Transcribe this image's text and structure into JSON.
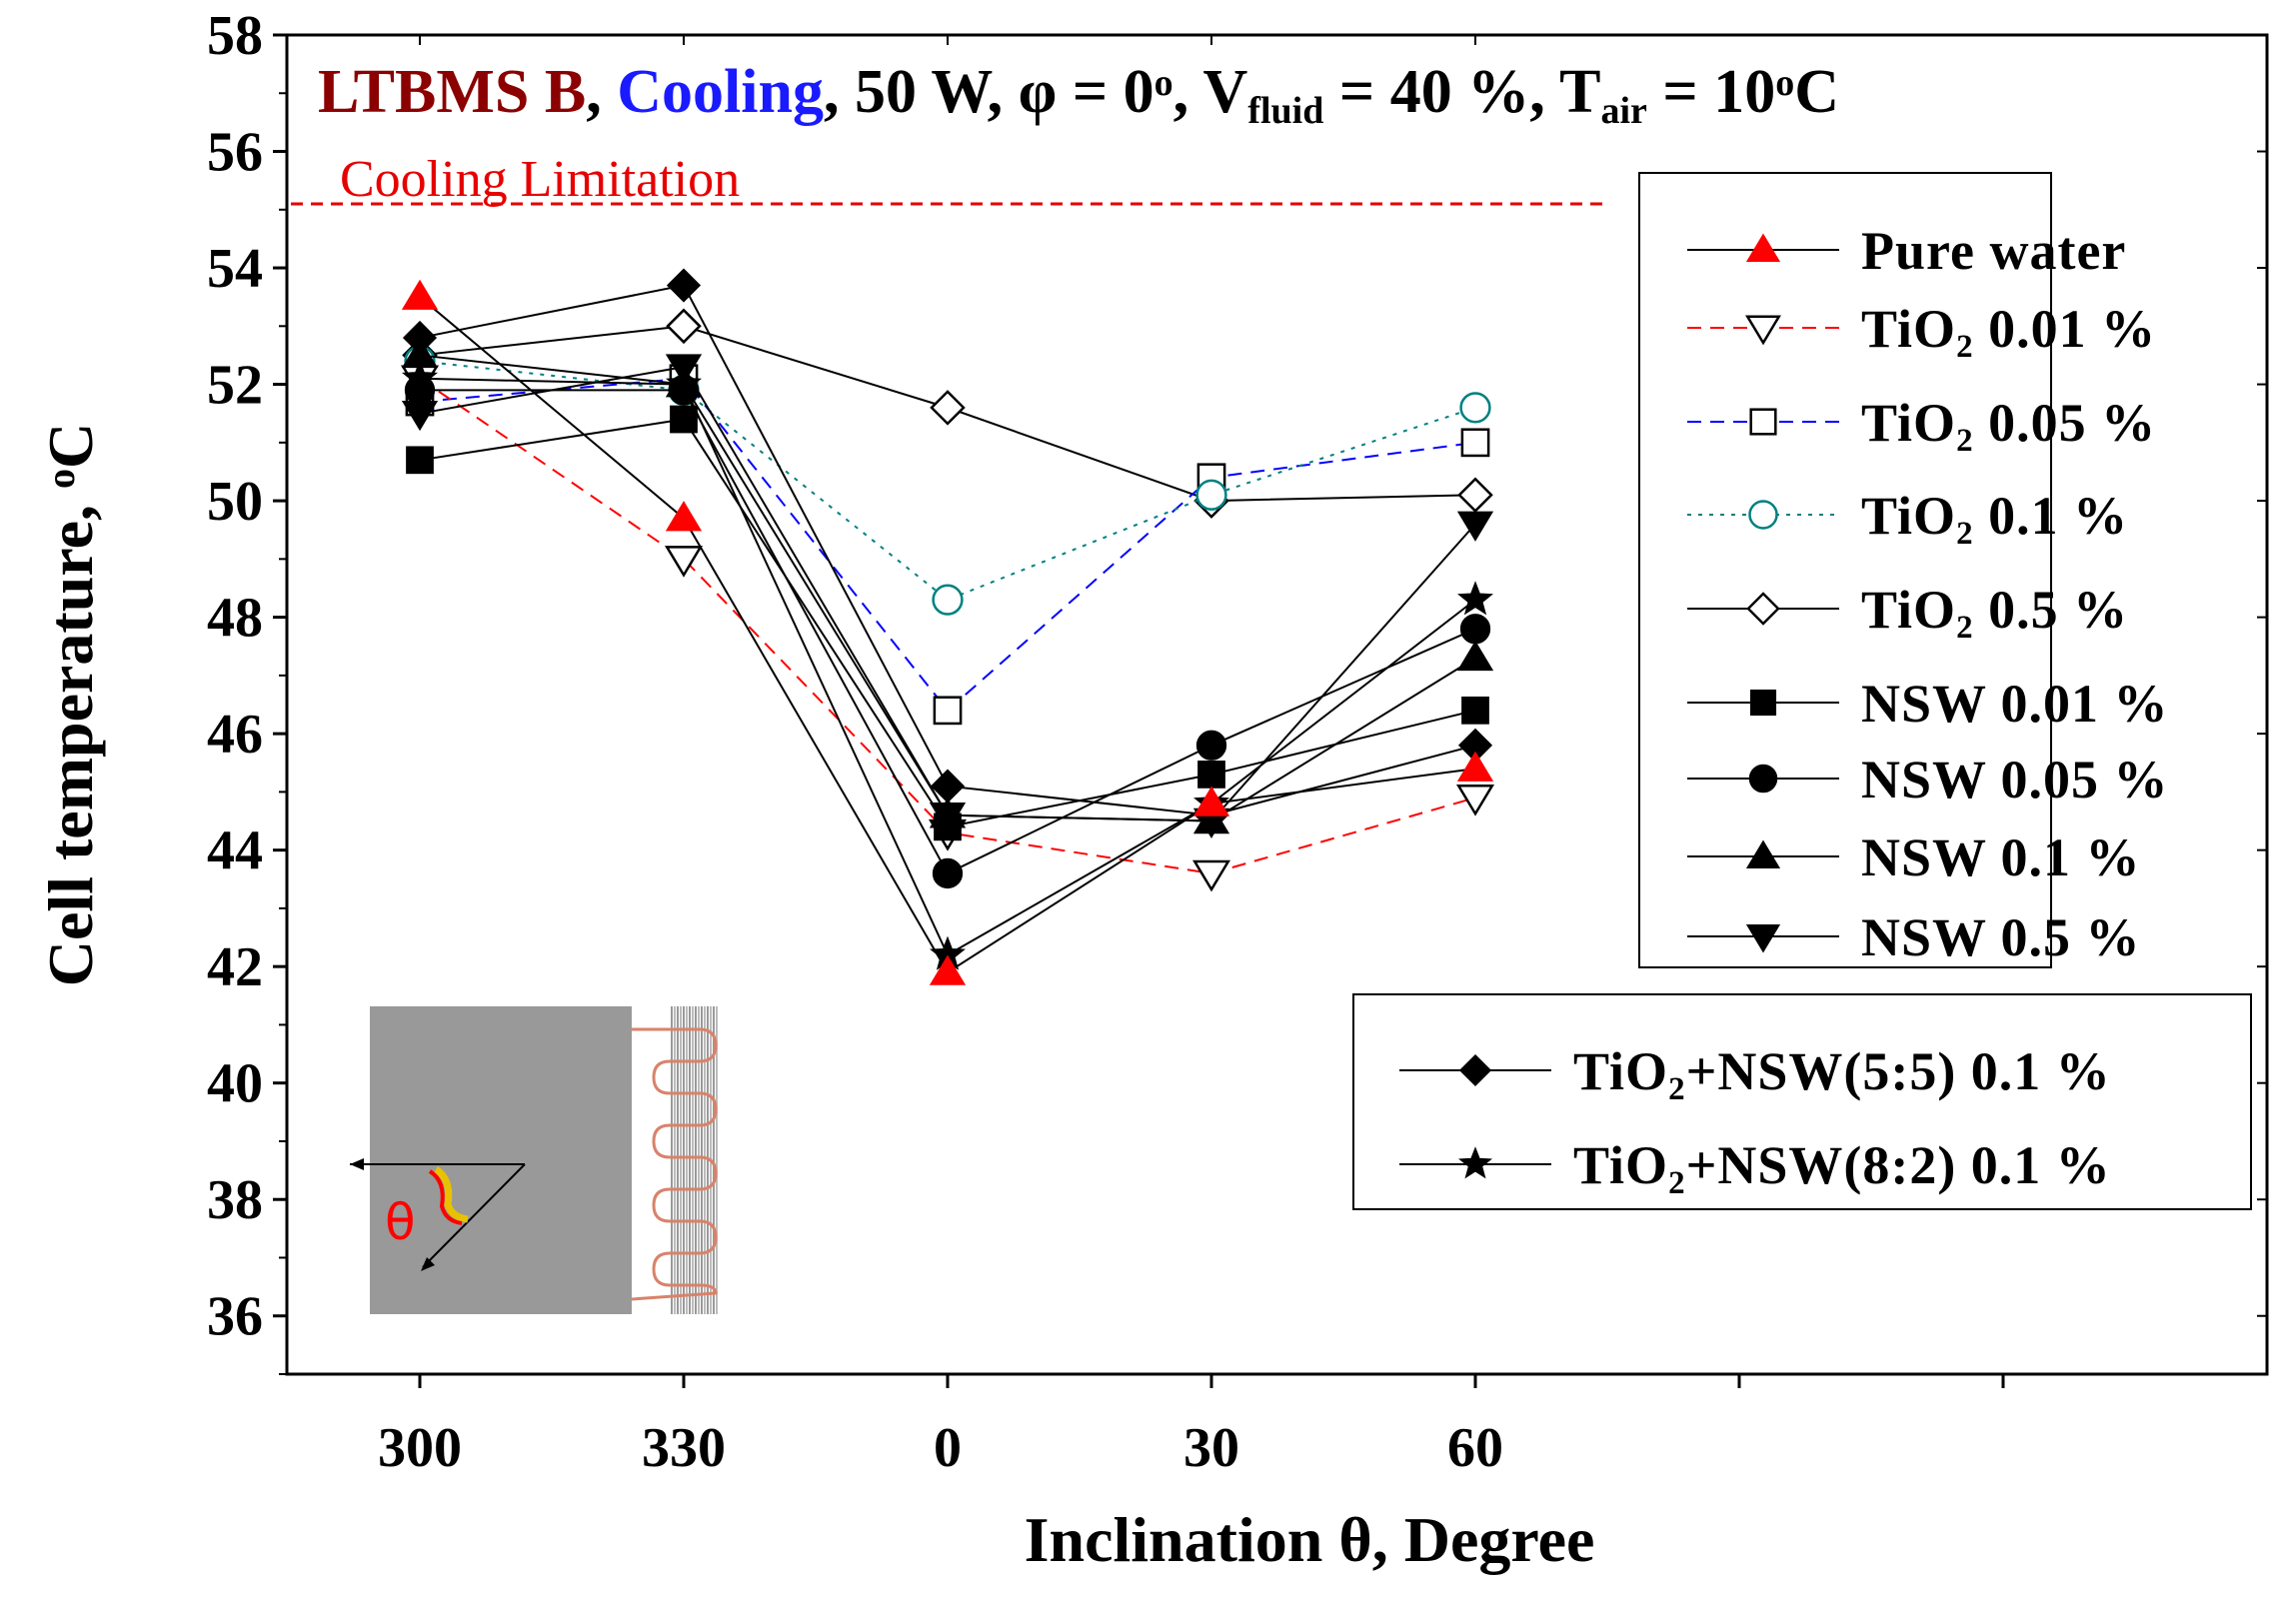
{
  "chart_data": {
    "type": "line",
    "title": {
      "parts": [
        {
          "text": "LTBMS B",
          "color": "#8b0000"
        },
        {
          "text": ", ",
          "color": "#000000"
        },
        {
          "text": "Cooling",
          "color": "#1a1aff"
        },
        {
          "text": ", 50 W, φ = 0",
          "color": "#000000"
        },
        {
          "text": "o",
          "color": "#000000",
          "sup": true
        },
        {
          "text": ", V",
          "color": "#000000"
        },
        {
          "text": "fluid",
          "color": "#000000",
          "sub": true
        },
        {
          "text": " = 40 %, T",
          "color": "#000000"
        },
        {
          "text": "air",
          "color": "#000000",
          "sub": true
        },
        {
          "text": " = 10",
          "color": "#000000"
        },
        {
          "text": "o",
          "color": "#000000",
          "sup": true
        },
        {
          "text": "C",
          "color": "#000000"
        }
      ]
    },
    "xlabel": "Inclination θ, Degree",
    "ylabel": "Cell temperature, ",
    "ylabel_sup": "o",
    "ylabel_end": "C",
    "categories": [
      "300",
      "330",
      "0",
      "30",
      "60"
    ],
    "ylim": [
      35,
      58
    ],
    "yticks": [
      36,
      38,
      40,
      42,
      44,
      46,
      48,
      50,
      52,
      54,
      56,
      58
    ],
    "annotation": {
      "text": "Cooling Limitation",
      "y": 55.1,
      "color": "#e60000"
    },
    "series": [
      {
        "name": "Pure water",
        "name_parts": [
          {
            "text": "Pure water"
          }
        ],
        "values": [
          53.5,
          49.7,
          41.9,
          44.8,
          45.4
        ],
        "marker": "triangle-up",
        "fill": "#ff0000",
        "stroke": "#ff0000",
        "line_color": "#000000",
        "dash": "solid"
      },
      {
        "name": "TiO2 0.01 %",
        "name_parts": [
          {
            "text": "TiO"
          },
          {
            "text": "2",
            "sub": true
          },
          {
            "text": " 0.01 %"
          }
        ],
        "values": [
          52.1,
          49.0,
          44.3,
          43.6,
          44.9
        ],
        "marker": "triangle-down",
        "fill": "#ffffff",
        "stroke": "#000000",
        "line_color": "#ff0000",
        "dash": "dashed"
      },
      {
        "name": "TiO2 0.05 %",
        "name_parts": [
          {
            "text": "TiO"
          },
          {
            "text": "2",
            "sub": true
          },
          {
            "text": " 0.05 %"
          }
        ],
        "values": [
          51.7,
          52.1,
          46.4,
          50.4,
          51.0
        ],
        "marker": "square",
        "fill": "#ffffff",
        "stroke": "#000000",
        "line_color": "#0000ff",
        "dash": "dashed"
      },
      {
        "name": "TiO2 0.1 %",
        "name_parts": [
          {
            "text": "TiO"
          },
          {
            "text": "2",
            "sub": true
          },
          {
            "text": " 0.1 %"
          }
        ],
        "values": [
          52.4,
          51.9,
          48.3,
          50.1,
          51.6
        ],
        "marker": "circle",
        "fill": "#ffffff",
        "stroke": "#008080",
        "line_color": "#008080",
        "dash": "dotted"
      },
      {
        "name": "TiO2 0.5 %",
        "name_parts": [
          {
            "text": "TiO"
          },
          {
            "text": "2",
            "sub": true
          },
          {
            "text": " 0.5 %"
          }
        ],
        "values": [
          52.5,
          53.0,
          51.6,
          50.0,
          50.1
        ],
        "marker": "diamond",
        "fill": "#ffffff",
        "stroke": "#000000",
        "line_color": "#000000",
        "dash": "solid"
      },
      {
        "name": "NSW 0.01 %",
        "name_parts": [
          {
            "text": "NSW 0.01 %"
          }
        ],
        "values": [
          50.7,
          51.4,
          44.4,
          45.3,
          46.4
        ],
        "marker": "square",
        "fill": "#000000",
        "stroke": "#000000",
        "line_color": "#000000",
        "dash": "solid"
      },
      {
        "name": "NSW 0.05 %",
        "name_parts": [
          {
            "text": "NSW 0.05 %"
          }
        ],
        "values": [
          51.9,
          51.9,
          43.6,
          45.8,
          47.8
        ],
        "marker": "circle",
        "fill": "#000000",
        "stroke": "#000000",
        "line_color": "#000000",
        "dash": "solid"
      },
      {
        "name": "NSW 0.1 %",
        "name_parts": [
          {
            "text": "NSW 0.1 %"
          }
        ],
        "values": [
          52.5,
          52.0,
          44.6,
          44.5,
          47.3
        ],
        "marker": "triangle-up",
        "fill": "#000000",
        "stroke": "#000000",
        "line_color": "#000000",
        "dash": "solid"
      },
      {
        "name": "NSW 0.5 %",
        "name_parts": [
          {
            "text": "NSW 0.5 %"
          }
        ],
        "values": [
          51.5,
          52.3,
          44.6,
          44.5,
          49.6
        ],
        "marker": "triangle-down",
        "fill": "#000000",
        "stroke": "#000000",
        "line_color": "#000000",
        "dash": "solid"
      },
      {
        "name": "TiO2+NSW(5:5) 0.1 %",
        "name_parts": [
          {
            "text": "TiO"
          },
          {
            "text": "2",
            "sub": true
          },
          {
            "text": "+NSW(5:5) 0.1 %"
          }
        ],
        "values": [
          52.8,
          53.7,
          45.1,
          44.6,
          45.8
        ],
        "marker": "diamond",
        "fill": "#000000",
        "stroke": "#000000",
        "line_color": "#000000",
        "dash": "solid"
      },
      {
        "name": "TiO2+NSW(8:2) 0.1 %",
        "name_parts": [
          {
            "text": "TiO"
          },
          {
            "text": "2",
            "sub": true
          },
          {
            "text": "+NSW(8:2) 0.1 %"
          }
        ],
        "values": [
          52.1,
          52.0,
          42.2,
          44.8,
          48.3
        ],
        "marker": "star",
        "fill": "#000000",
        "stroke": "#000000",
        "line_color": "#000000",
        "dash": "solid"
      }
    ],
    "legend": {
      "groups": [
        [
          0,
          1,
          2,
          3,
          4,
          5,
          6,
          7,
          8
        ],
        [
          9,
          10
        ]
      ],
      "position": "right"
    },
    "inset": {
      "label": "θ",
      "description": "battery cell with cooling channel and inclination angle"
    }
  }
}
